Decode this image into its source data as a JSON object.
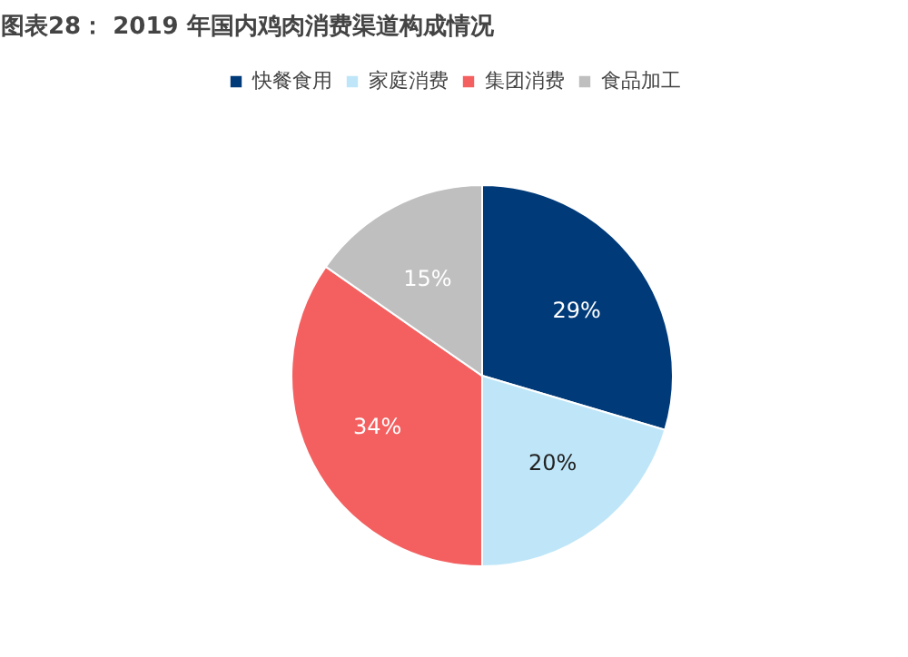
{
  "chart_data": {
    "type": "pie",
    "title": "图表28： 2019 年国内鸡肉消费渠道构成情况",
    "categories": [
      "快餐食用",
      "家庭消费",
      "集团消费",
      "食品加工"
    ],
    "values": [
      29,
      20,
      34,
      15
    ],
    "colors": [
      "#003a78",
      "#bfe6f8",
      "#f46060",
      "#bfbfbf"
    ],
    "value_labels": [
      "29%",
      "20%",
      "34%",
      "15%"
    ],
    "legend": "top"
  }
}
